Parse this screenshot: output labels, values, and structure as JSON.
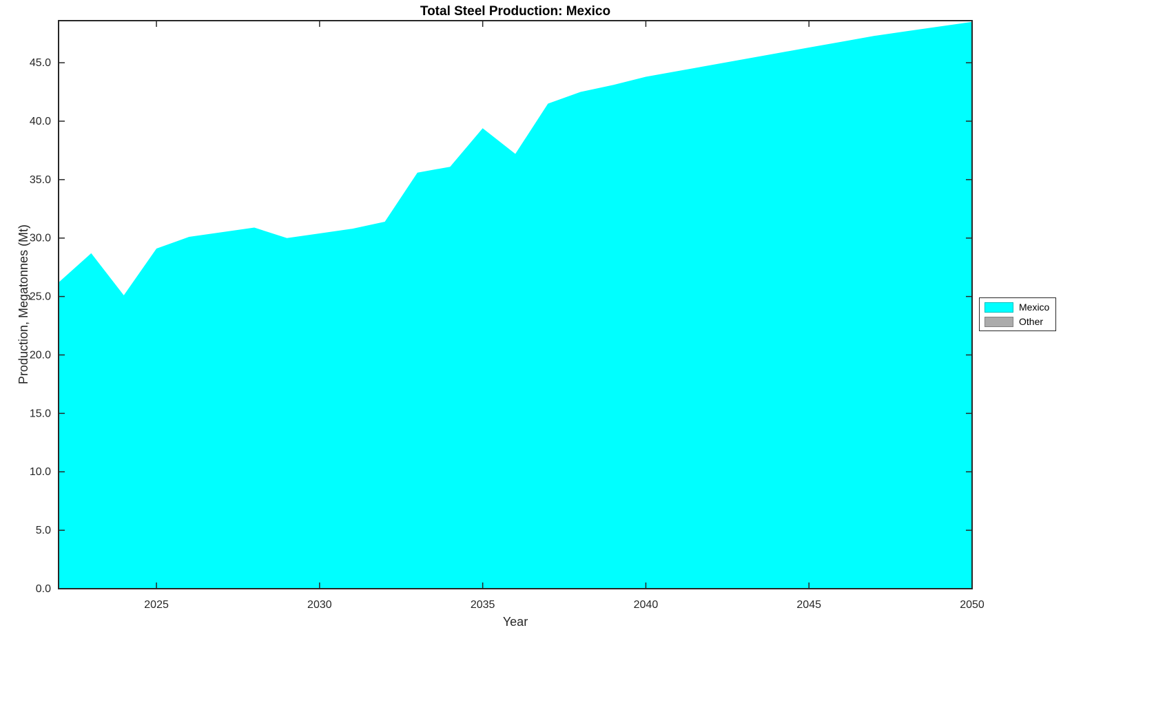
{
  "chart_data": {
    "type": "area",
    "title": "Total Steel Production: Mexico",
    "xlabel": "Year",
    "ylabel": "Production, Megatonnes (Mt)",
    "x": [
      2022,
      2023,
      2024,
      2025,
      2026,
      2027,
      2028,
      2029,
      2030,
      2031,
      2032,
      2033,
      2034,
      2035,
      2036,
      2037,
      2038,
      2039,
      2040,
      2041,
      2042,
      2043,
      2044,
      2045,
      2046,
      2047,
      2048,
      2049,
      2050
    ],
    "series": [
      {
        "name": "Mexico",
        "color": "#00FFFF",
        "values": [
          26.2,
          28.7,
          25.1,
          29.1,
          30.1,
          30.5,
          30.9,
          30.0,
          30.4,
          30.8,
          31.4,
          35.6,
          36.1,
          39.4,
          37.2,
          41.5,
          42.5,
          43.1,
          43.8,
          44.3,
          44.8,
          45.3,
          45.8,
          46.3,
          46.8,
          47.3,
          47.7,
          48.1,
          48.5
        ]
      }
    ],
    "legend": [
      {
        "label": "Mexico",
        "color": "#00FFFF"
      },
      {
        "label": "Other",
        "color": "#ABABAB"
      }
    ],
    "legend_position": "right-outside",
    "xlim": [
      2022,
      2050
    ],
    "ylim": [
      0,
      48.6
    ],
    "xticks": [
      2025,
      2030,
      2035,
      2040,
      2045,
      2050
    ],
    "yticks": [
      0,
      5,
      10,
      15,
      20,
      25,
      30,
      35,
      40,
      45
    ],
    "grid": false,
    "axis_color": "#262626"
  }
}
